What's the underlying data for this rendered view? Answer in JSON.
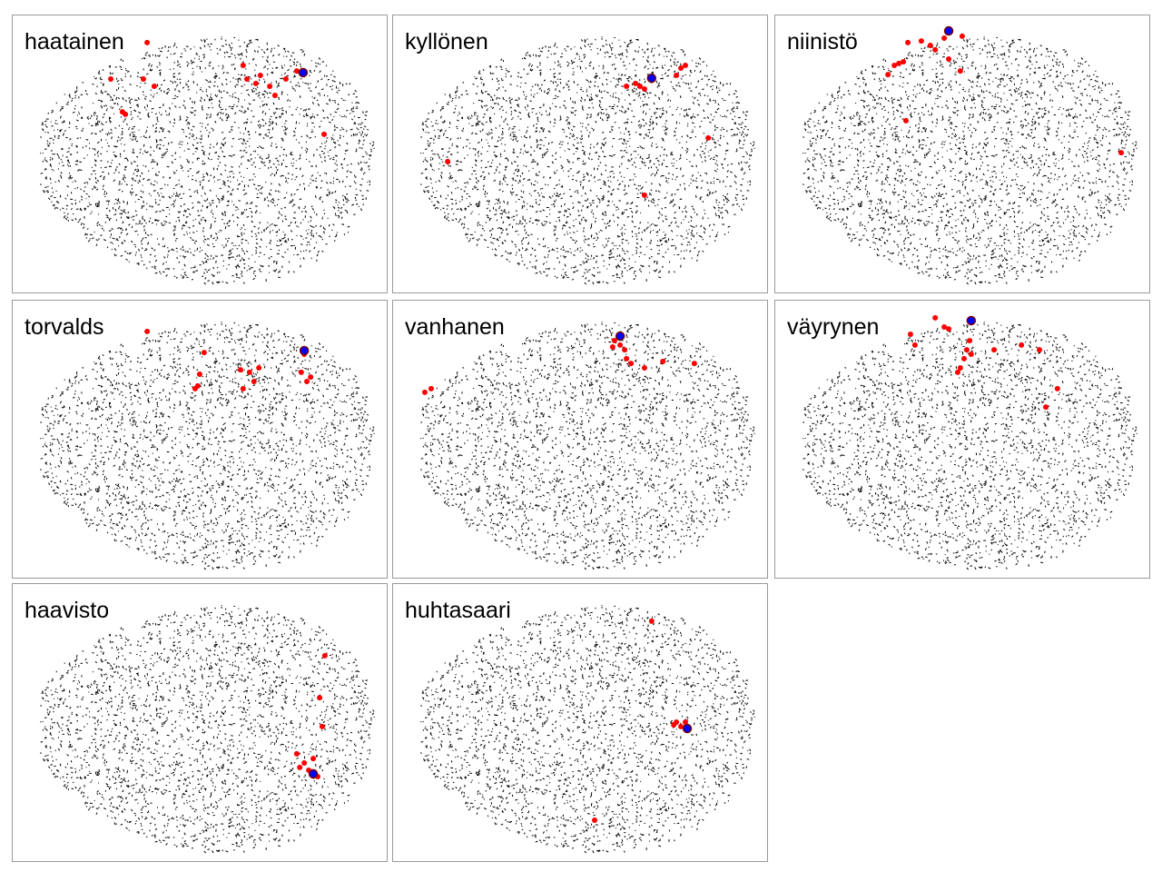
{
  "chart_data": [
    {
      "type": "scatter",
      "title": "haatainen",
      "xlim": [
        0,
        100
      ],
      "ylim": [
        0,
        100
      ],
      "series": [
        {
          "color": "#ff0000",
          "x": [
            36.1,
            26.4,
            35.1,
            38.0,
            29.5,
            30.3,
            61.7,
            62.7,
            66.3,
            65.1,
            68.8,
            73.1,
            76.0,
            70.2,
            83.3
          ],
          "y": [
            89.9,
            76.8,
            76.8,
            74.2,
            65.0,
            64.1,
            81.7,
            76.8,
            78.1,
            75.2,
            74.2,
            76.8,
            79.7,
            70.9,
            56.9
          ]
        },
        {
          "color": "#0000ff",
          "x": [
            77.7
          ],
          "y": [
            79.1
          ]
        }
      ]
    },
    {
      "type": "scatter",
      "title": "kyllönen",
      "xlim": [
        0,
        100
      ],
      "ylim": [
        0,
        100
      ],
      "series": [
        {
          "color": "#ff0000",
          "x": [
            69.0,
            66.1,
            67.3,
            64.9,
            62.5,
            77.0,
            75.8,
            78.2,
            84.3,
            67.3,
            14.8
          ],
          "y": [
            76.5,
            74.2,
            73.2,
            75.2,
            74.2,
            80.7,
            78.1,
            81.7,
            55.6,
            35.0,
            47.1
          ]
        },
        {
          "color": "#0000ff",
          "x": [
            69.2
          ],
          "y": [
            77.1
          ]
        }
      ]
    },
    {
      "type": "scatter",
      "title": "niinistö",
      "xlim": [
        0,
        100
      ],
      "ylim": [
        0,
        100
      ],
      "series": [
        {
          "color": "#ff0000",
          "x": [
            35.6,
            39.2,
            41.6,
            33.2,
            32.0,
            34.4,
            45.3,
            50.1,
            46.5,
            49.6,
            30.3,
            35.1,
            92.5,
            42.9
          ],
          "y": [
            89.9,
            90.5,
            88.9,
            82.4,
            81.7,
            83.0,
            91.5,
            92.2,
            84.0,
            79.7,
            78.4,
            61.8,
            50.3,
            87.3
          ]
        },
        {
          "color": "#0000ff",
          "x": [
            46.5
          ],
          "y": [
            94.1
          ]
        }
      ]
    },
    {
      "type": "scatter",
      "title": "torvalds",
      "xlim": [
        0,
        100
      ],
      "ylim": [
        0,
        100
      ],
      "series": [
        {
          "color": "#ff0000",
          "x": [
            36.1,
            51.3,
            50.1,
            49.6,
            48.9,
            61.0,
            63.4,
            65.9,
            64.6,
            61.7,
            78.0,
            77.2,
            78.7,
            79.7
          ],
          "y": [
            88.6,
            81.0,
            73.2,
            69.0,
            68.0,
            74.8,
            73.9,
            75.5,
            70.6,
            68.0,
            80.4,
            73.9,
            70.6,
            72.2
          ]
        },
        {
          "color": "#0000ff",
          "x": [
            78.0
          ],
          "y": [
            81.7
          ]
        }
      ]
    },
    {
      "type": "scatter",
      "title": "vanhanen",
      "xlim": [
        0,
        100
      ],
      "ylim": [
        0,
        100
      ],
      "series": [
        {
          "color": "#ff0000",
          "x": [
            59.3,
            60.8,
            62.0,
            58.8,
            62.5,
            63.7,
            72.2,
            80.6,
            10.4,
            8.7,
            67.3
          ],
          "y": [
            85.3,
            83.7,
            82.0,
            83.0,
            78.8,
            77.1,
            77.8,
            77.1,
            68.0,
            66.7,
            75.5
          ]
        },
        {
          "color": "#0000ff",
          "x": [
            60.8
          ],
          "y": [
            86.9
          ]
        }
      ]
    },
    {
      "type": "scatter",
      "title": "väyrynen",
      "xlim": [
        0,
        100
      ],
      "ylim": [
        0,
        100
      ],
      "series": [
        {
          "color": "#ff0000",
          "x": [
            45.3,
            46.5,
            51.3,
            50.6,
            49.6,
            48.9,
            52.5,
            52.1,
            58.6,
            65.9,
            70.7,
            75.5,
            72.4,
            36.3,
            37.5,
            42.9
          ],
          "y": [
            90.2,
            89.5,
            82.0,
            78.8,
            75.5,
            73.9,
            80.4,
            85.3,
            82.0,
            83.7,
            82.0,
            68.0,
            61.4,
            87.6,
            83.7,
            93.5
          ]
        },
        {
          "color": "#0000ff",
          "x": [
            52.5
          ],
          "y": [
            92.5
          ]
        }
      ]
    },
    {
      "type": "scatter",
      "title": "haavisto",
      "xlim": [
        0,
        100
      ],
      "ylim": [
        0,
        100
      ],
      "series": [
        {
          "color": "#ff0000",
          "x": [
            83.5,
            82.1,
            82.8,
            78.0,
            76.8,
            79.2,
            80.4,
            76.0,
            81.6
          ],
          "y": [
            73.9,
            58.8,
            48.4,
            35.3,
            33.7,
            32.7,
            36.9,
            38.6,
            30.4
          ]
        },
        {
          "color": "#0000ff",
          "x": [
            80.4
          ],
          "y": [
            31.4
          ]
        }
      ]
    },
    {
      "type": "scatter",
      "title": "huhtasaari",
      "xlim": [
        0,
        100
      ],
      "ylim": [
        0,
        100
      ],
      "series": [
        {
          "color": "#ff0000",
          "x": [
            69.2,
            75.8,
            77.0,
            75.1,
            78.2,
            54.0
          ],
          "y": [
            86.3,
            50.0,
            48.4,
            49.0,
            50.0,
            14.7
          ]
        },
        {
          "color": "#0000ff",
          "x": [
            78.7
          ],
          "y": [
            47.7
          ]
        }
      ]
    }
  ]
}
